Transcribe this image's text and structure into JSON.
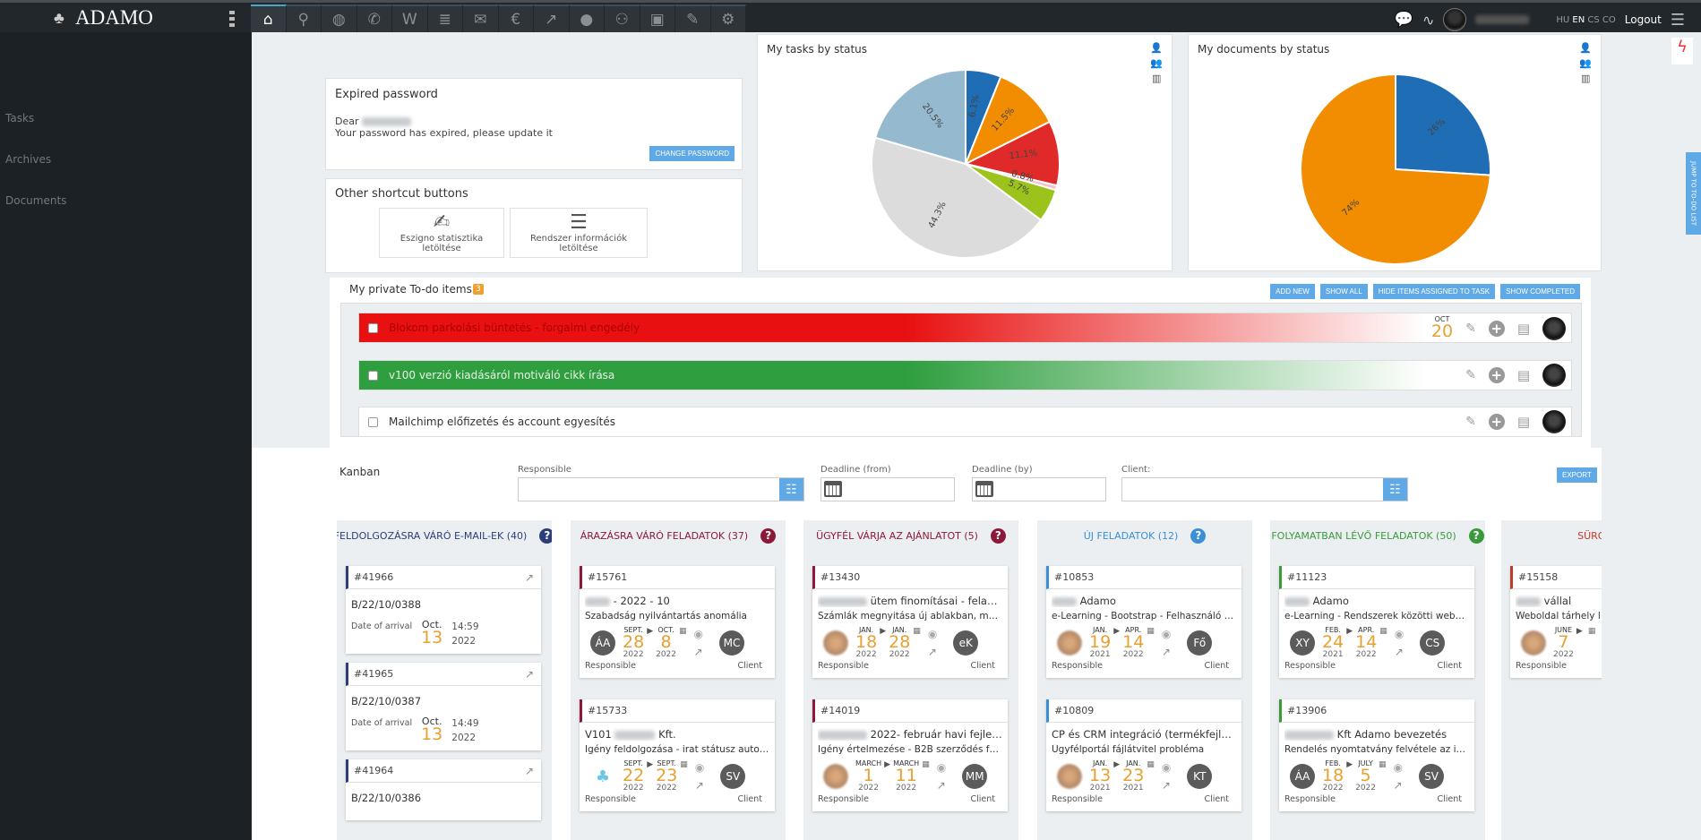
{
  "app": {
    "logo": "ADAMO"
  },
  "topbar": {
    "nav_icons": [
      "home-icon",
      "user-search-icon",
      "globe-icon",
      "phone-icon",
      "w-icon",
      "layers-icon",
      "mail-icon",
      "euro-icon",
      "chart-icon",
      "person-icon",
      "group-icon",
      "money-icon",
      "sign-document-icon",
      "gear-icon"
    ],
    "languages": [
      "HU",
      "EN",
      "CS",
      "CO"
    ],
    "active_language": "EN",
    "logout": "Logout"
  },
  "sidebar": {
    "items": [
      {
        "label": "Tasks"
      },
      {
        "label": "Archives"
      },
      {
        "label": "Documents"
      }
    ]
  },
  "expired": {
    "title": "Expired password",
    "dear": "Dear",
    "message": "Your password has expired, please update it",
    "button": "CHANGE PASSWORD"
  },
  "shortcuts": {
    "title": "Other shortcut buttons",
    "buttons": [
      {
        "label": "Eszigno statisztika letöltése"
      },
      {
        "label": "Rendszer információk letöltése"
      }
    ]
  },
  "chart_data": [
    {
      "type": "pie",
      "title": "My tasks by status",
      "values": [
        6.1,
        11.5,
        11.1,
        0.8,
        5.7,
        44.3,
        20.5
      ],
      "labels": [
        "6.1%",
        "11.5%",
        "11.1%",
        "0.8%",
        "5.7%",
        "44.3%",
        "20.5%"
      ],
      "colors": [
        "#1f6db5",
        "#f28c00",
        "#e02a2a",
        "#f4c2c8",
        "#9cc31c",
        "#dcdcdc",
        "#95b9cf"
      ]
    },
    {
      "type": "pie",
      "title": "My documents by status",
      "values": [
        26,
        74
      ],
      "labels": [
        "26%",
        "74%"
      ],
      "colors": [
        "#1f6db5",
        "#f28c00"
      ]
    }
  ],
  "right_strip": {
    "jump": "JUMP TO TO-DO LIST"
  },
  "todo": {
    "title": "My private To-do items",
    "count": "3",
    "buttons": {
      "add": "ADD NEW",
      "show_all": "SHOW ALL",
      "hide": "HIDE ITEMS ASSIGNED TO TASK",
      "completed": "SHOW COMPLETED"
    },
    "items": [
      {
        "text": "Blokom parkolási büntetés - forgalmi engedély",
        "color": "#e81010",
        "due_month": "OCT",
        "due_day": "20"
      },
      {
        "text": "v100 verzió kiadásáról motiváló cikk írása",
        "color": "#2e9e3e"
      },
      {
        "text": "Mailchimp előfizetés és account egyesítés",
        "color": "#ffffff"
      }
    ]
  },
  "kanban": {
    "title": "Kanban",
    "filters": {
      "responsible": "Responsible",
      "deadline_from": "Deadline (from)",
      "deadline_by": "Deadline (by)",
      "client": "Client:"
    },
    "export": "EXPORT",
    "responsible_label": "Responsible",
    "client_label": "Client",
    "arrival_label": "Date of arrival",
    "columns": [
      {
        "title": "FELDOLGOZÁSRA VÁRÓ E-MAIL-EK (40)",
        "color": "#2c3e7a",
        "type": "email",
        "cards": [
          {
            "id": "#41966",
            "code": "B/22/10/0388",
            "month": "Oct.",
            "day": "13",
            "year": "2022",
            "time": "14:59"
          },
          {
            "id": "#41965",
            "code": "B/22/10/0387",
            "month": "Oct.",
            "day": "13",
            "year": "2022",
            "time": "14:49"
          },
          {
            "id": "#41964",
            "code": "B/22/10/0386"
          }
        ]
      },
      {
        "title": "ÁRAZÁSRA VÁRÓ FELADATOK (37)",
        "color": "#8b1a3a",
        "cards": [
          {
            "id": "#15761",
            "title": "- 2022 - 10",
            "blur": true,
            "sub": "Szabadság nyilvántartás anomália",
            "resp": "ÁA",
            "from": [
              "SEPT.",
              "28",
              "2022"
            ],
            "to": [
              "OCT.",
              "8",
              "2022"
            ],
            "client": "MC"
          },
          {
            "id": "#15733",
            "title": "V101",
            "title2": "Kft.",
            "blur": true,
            "sub": "Igény feldolgozása - irat státusz automati...",
            "resp_type": "logo",
            "from": [
              "SEPT.",
              "22",
              "2022"
            ],
            "to": [
              "SEPT.",
              "23",
              "2022"
            ],
            "client": "SV"
          }
        ]
      },
      {
        "title": "ÜGYFÉL VÁRJA AZ AJÁNLATOT (5)",
        "color": "#8b1a3a",
        "cards": [
          {
            "id": "#13430",
            "title": "ütem finomításai - feladatok",
            "blur": true,
            "sub": "Számlák megnyitása új ablakban, mentés...",
            "resp_type": "photo",
            "from": [
              "JAN.",
              "18",
              "2022"
            ],
            "to": [
              "JAN.",
              "28",
              "2022"
            ],
            "client": "eK"
          },
          {
            "id": "#14019",
            "title": "2022- február havi fejles...",
            "blur": true,
            "sub": "Igény értelmezése - B2B szerződés fedla...",
            "resp_type": "photo",
            "from": [
              "MARCH",
              "1",
              "2022"
            ],
            "to": [
              "MARCH",
              "11",
              "2022"
            ],
            "client": "MM"
          }
        ]
      },
      {
        "title": "ÚJ FELADATOK (12)",
        "color": "#3a8fd6",
        "cards": [
          {
            "id": "#10853",
            "title": "Adamo",
            "blur": true,
            "sub": "e-Learning - Bootstrap - Felhasználó adat...",
            "resp_type": "photo",
            "from": [
              "JAN.",
              "19",
              "2021"
            ],
            "to": [
              "APR.",
              "14",
              "2022"
            ],
            "client": "Fő"
          },
          {
            "id": "#10809",
            "title": "CP és CRM integráció (termékfejlesztés)",
            "sub": "Ügyfélportál fájlátvitel probléma",
            "resp_type": "photo",
            "from": [
              "JAN.",
              "13",
              "2021"
            ],
            "to": [
              "JAN.",
              "23",
              "2021"
            ],
            "client": "KT"
          }
        ]
      },
      {
        "title": "FOLYAMATBAN LÉVŐ FELADATOK (50)",
        "color": "#3a9a3a",
        "cards": [
          {
            "id": "#11123",
            "title": "Adamo",
            "blur": true,
            "sub": "e-Learning - Rendszerek közötti webservi...",
            "resp": "XY",
            "from": [
              "FEB.",
              "24",
              "2021"
            ],
            "to": [
              "APR.",
              "14",
              "2022"
            ],
            "client": "CS"
          },
          {
            "id": "#13906",
            "title": "Kft Adamo bevezetés",
            "blur": true,
            "sub": "Rendelés nyomtatvány felvétele az indir...",
            "resp": "ÁA",
            "from": [
              "FEB.",
              "18",
              "2022"
            ],
            "to": [
              "JULY",
              "5",
              "2022"
            ],
            "client": "SV"
          }
        ]
      },
      {
        "title": "SÜRGŐS FEL",
        "color": "#c0392b",
        "cards": [
          {
            "id": "#15158",
            "title": "vállal",
            "blur": true,
            "sub": "Weboldal tárhely l",
            "resp_type": "photo",
            "from": [
              "JUNE",
              "7",
              "2022"
            ],
            "to": [
              "",
              "",
              ""
            ],
            "client": ""
          }
        ]
      }
    ]
  }
}
